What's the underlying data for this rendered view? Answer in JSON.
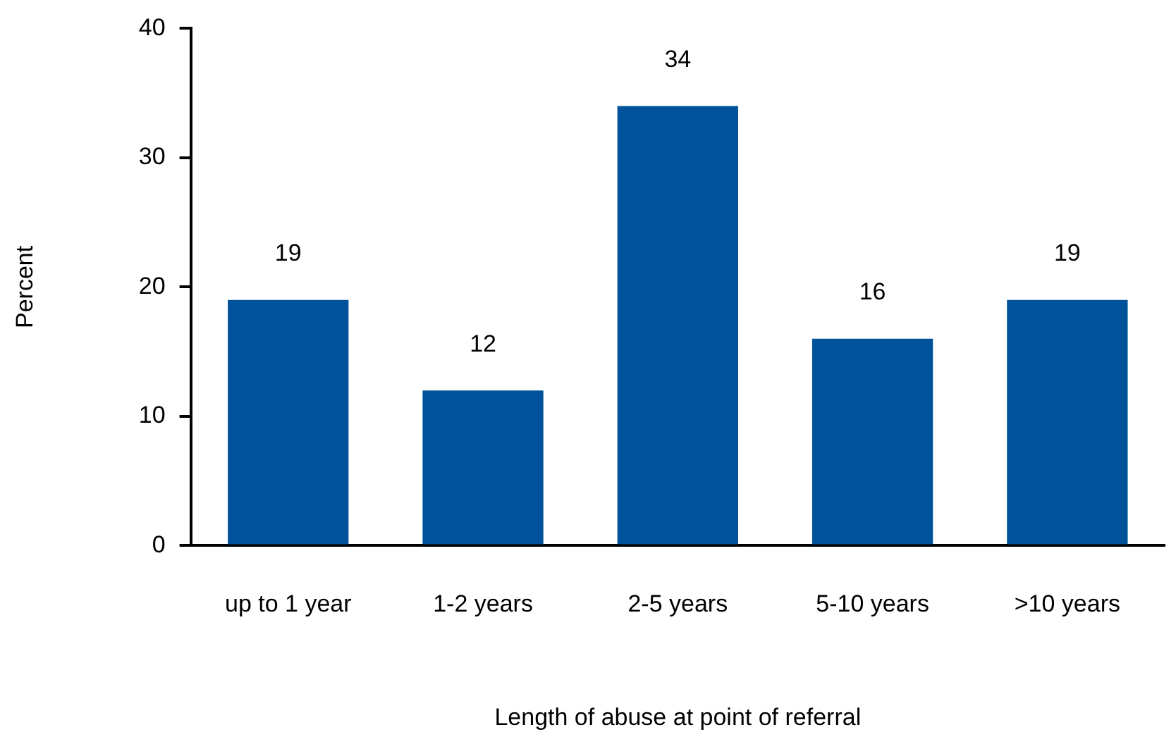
{
  "chart_data": {
    "type": "bar",
    "xlabel": "Length of abuse at point of referral",
    "ylabel": "Percent",
    "categories": [
      "up to 1 year",
      "1-2 years",
      "2-5 years",
      "5-10 years",
      ">10 years"
    ],
    "values": [
      19,
      12,
      34,
      16,
      19
    ],
    "color": "#00529b",
    "ylim": [
      0,
      40
    ],
    "yticks": [
      0,
      10,
      20,
      30,
      40
    ],
    "grid": false,
    "legend": false,
    "data_labels": true
  }
}
